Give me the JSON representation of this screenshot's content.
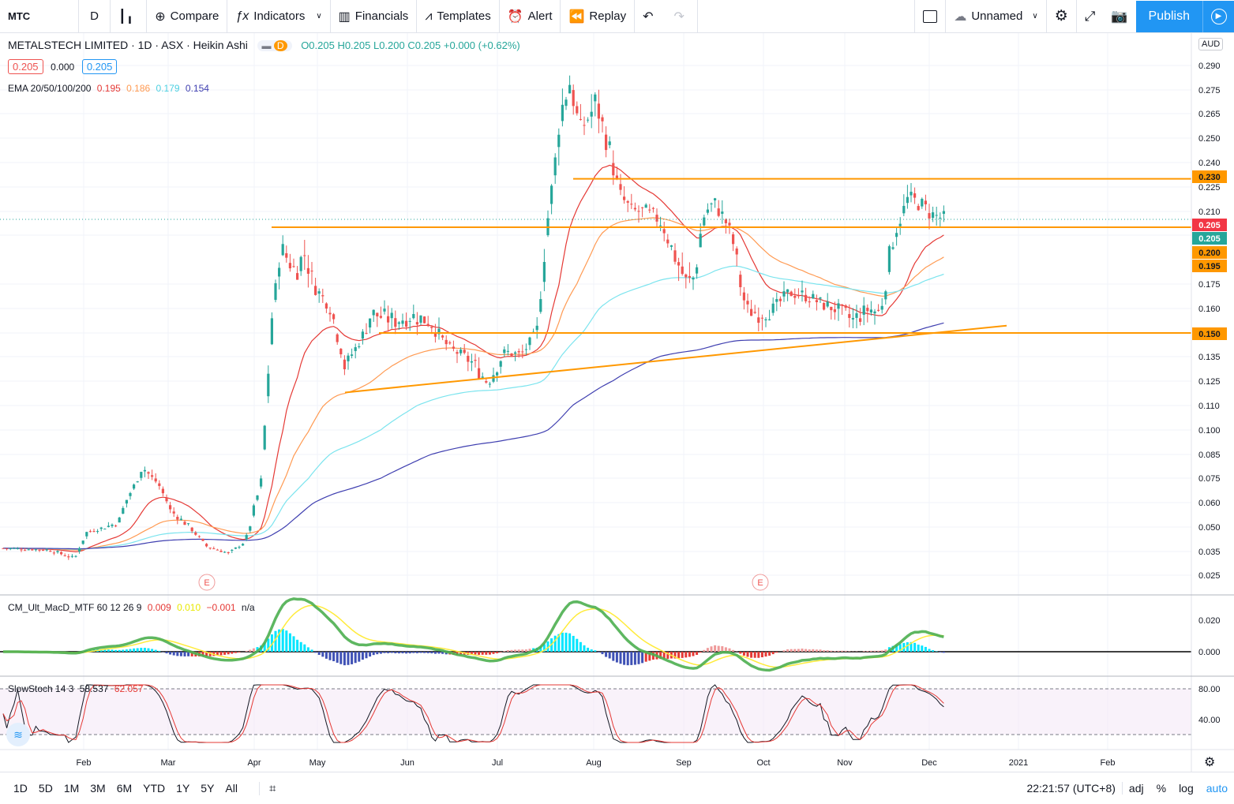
{
  "toolbar": {
    "symbol": "MTC",
    "interval": "D",
    "compare": "Compare",
    "indicators": "Indicators",
    "financials": "Financials",
    "templates": "Templates",
    "alert": "Alert",
    "replay": "Replay",
    "layout_name": "Unnamed",
    "publish": "Publish"
  },
  "legend": {
    "title": "METALSTECH LIMITED · 1D · ASX · Heikin Ashi",
    "d_badge": "D",
    "ohlc": "O0.205 H0.205 L0.200 C0.205 +0.000 (+0.62%)",
    "bid": "0.205",
    "spread": "0.000",
    "ask": "0.205",
    "ema_label": "EMA 20/50/100/200",
    "ema_values": [
      "0.195",
      "0.186",
      "0.179",
      "0.154"
    ],
    "macd_label": "CM_Ult_MacD_MTF 60 12 26 9",
    "macd_values": [
      "0.009",
      "0.010",
      "−0.001",
      "n/a"
    ],
    "stoch_label": "SlowStoch 14 3",
    "stoch_values": [
      "58.537",
      "62.057"
    ]
  },
  "price_axis": {
    "currency": "AUD",
    "ticks": [
      "0.290",
      "0.275",
      "0.265",
      "0.250",
      "0.240",
      "0.225",
      "0.210",
      "0.195",
      "0.175",
      "0.160",
      "0.150",
      "0.135",
      "0.125",
      "0.110",
      "0.100",
      "0.085",
      "0.075",
      "0.060",
      "0.050",
      "0.035",
      "0.025"
    ],
    "tags": [
      {
        "text": "0.230",
        "bg": "#ff9800",
        "fg": "#131722"
      },
      {
        "text": "0.205",
        "bg": "#f23645",
        "fg": "#ffffff"
      },
      {
        "text": "0.205",
        "bg": "#26a69a",
        "fg": "#ffffff"
      },
      {
        "text": "0.200",
        "bg": "#ff9800",
        "fg": "#131722"
      },
      {
        "text": "0.195",
        "bg": "#ff9800",
        "fg": "#131722"
      },
      {
        "text": "0.150",
        "bg": "#ff9800",
        "fg": "#131722"
      }
    ]
  },
  "macd_axis": {
    "ticks": [
      "0.020",
      "0.000"
    ]
  },
  "stoch_axis": {
    "ticks": [
      "80.00",
      "40.00"
    ]
  },
  "time_axis": {
    "labels": [
      "Feb",
      "Mar",
      "Apr",
      "May",
      "Jun",
      "Jul",
      "Aug",
      "Sep",
      "Oct",
      "Nov",
      "Dec",
      "2021",
      "Feb"
    ]
  },
  "events": [
    "E",
    "E"
  ],
  "bottom": {
    "ranges": [
      "1D",
      "5D",
      "1M",
      "3M",
      "6M",
      "YTD",
      "1Y",
      "5Y",
      "All"
    ],
    "clock": "22:21:57 (UTC+8)",
    "adj": "adj",
    "percent": "%",
    "log": "log",
    "auto": "auto"
  },
  "colors": {
    "up": "#26a69a",
    "down": "#ef5350",
    "ema20": "#e53935",
    "ema50": "#ff9a52",
    "ema100": "#7be4ee",
    "ema200": "#3f3fb0",
    "levels": "#ff9800",
    "accent": "#2196f3"
  },
  "chart_data": {
    "type": "candlestick",
    "series_style": "Heikin Ashi",
    "x": [
      "2020-01",
      "2020-02",
      "2020-03",
      "2020-04",
      "2020-05",
      "2020-06",
      "2020-07",
      "2020-08",
      "2020-09",
      "2020-10",
      "2020-11",
      "2020-12"
    ],
    "close": [
      0.037,
      0.06,
      0.05,
      0.17,
      0.145,
      0.15,
      0.18,
      0.25,
      0.21,
      0.16,
      0.165,
      0.205
    ],
    "ema20_end": 0.195,
    "ema50_end": 0.186,
    "ema100_end": 0.179,
    "ema200_end": 0.154,
    "horizontal_levels": [
      0.23,
      0.2,
      0.15
    ],
    "ylim": [
      0.022,
      0.295
    ]
  }
}
